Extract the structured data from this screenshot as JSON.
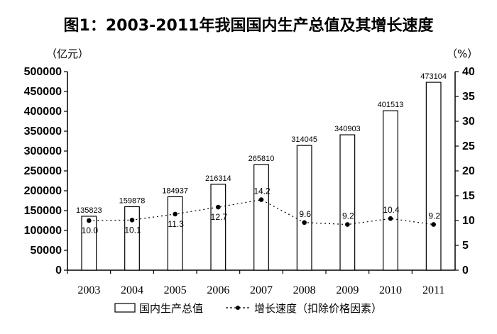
{
  "chart_data": {
    "type": "bar",
    "title": "图1：2003-2011年我国国内生产总值及其增长速度",
    "left_unit": "（亿元）",
    "right_unit": "（%）",
    "categories": [
      "2003",
      "2004",
      "2005",
      "2006",
      "2007",
      "2008",
      "2009",
      "2010",
      "2011"
    ],
    "series": [
      {
        "name": "国内生产总值",
        "kind": "bar",
        "axis": "left",
        "values": [
          135823,
          159878,
          184937,
          216314,
          265810,
          314045,
          340903,
          401513,
          473104
        ],
        "labels": [
          "135823",
          "159878",
          "184937",
          "216314",
          "265810",
          "314045",
          "340903",
          "401513",
          "473104"
        ]
      },
      {
        "name": "增长速度（扣除价格因素）",
        "kind": "line",
        "axis": "right",
        "values": [
          10.0,
          10.1,
          11.3,
          12.7,
          14.2,
          9.6,
          9.2,
          10.4,
          9.2
        ],
        "labels": [
          "10.0",
          "10.1",
          "11.3",
          "12.7",
          "14.2",
          "9.6",
          "9.2",
          "10.4",
          "9.2"
        ]
      }
    ],
    "ylim": [
      0,
      500000
    ],
    "y_ticks": [
      "500000",
      "450000",
      "400000",
      "350000",
      "300000",
      "250000",
      "200000",
      "150000",
      "100000",
      "50000",
      "0"
    ],
    "y2lim": [
      0,
      40
    ],
    "y2_ticks": [
      "40",
      "35",
      "30",
      "25",
      "20",
      "15",
      "10",
      "5",
      "0"
    ],
    "grid": false,
    "legend_position": "bottom"
  }
}
